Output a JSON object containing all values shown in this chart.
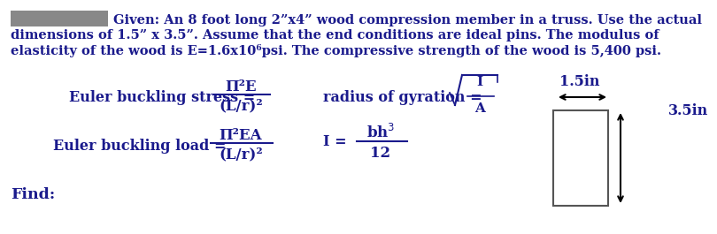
{
  "given_text_line1": "Given: An 8 foot long 2”x4” wood compression member in a truss. Use the actual",
  "given_text_line2": "dimensions of 1.5” x 3.5”. Assume that the end conditions are ideal pins. The modulus of",
  "given_text_line3": "elasticity of the wood is E=1.6x10⁶psi. The compressive strength of the wood is 5,400 psi.",
  "euler_stress_label": "Euler buckling stress =",
  "euler_stress_num": "Π²E",
  "euler_stress_den": "(L/r)²",
  "euler_load_label": "Euler buckling load =",
  "euler_load_num": "Π²EA",
  "euler_load_den": "(L/r)²",
  "radius_label": "radius of gyration =",
  "moment_label": "I =",
  "moment_num": "bh³",
  "moment_den": "12",
  "dim_width": "1.5in",
  "dim_height": "3.5in",
  "find_text": "Find:",
  "text_color": "#1a1a8c",
  "bg_color": "#ffffff",
  "fs_body": 10.5,
  "fs_formula": 12,
  "fs_label": 11.5,
  "fs_dim": 11.5
}
